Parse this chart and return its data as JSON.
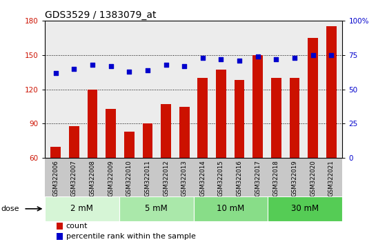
{
  "title": "GDS3529 / 1383079_at",
  "categories": [
    "GSM322006",
    "GSM322007",
    "GSM322008",
    "GSM322009",
    "GSM322010",
    "GSM322011",
    "GSM322012",
    "GSM322013",
    "GSM322014",
    "GSM322015",
    "GSM322016",
    "GSM322017",
    "GSM322018",
    "GSM322019",
    "GSM322020",
    "GSM322021"
  ],
  "bar_values": [
    70,
    88,
    120,
    103,
    83,
    90,
    107,
    105,
    130,
    137,
    128,
    150,
    130,
    130,
    165,
    175
  ],
  "percentile_values": [
    62,
    65,
    68,
    67,
    63,
    64,
    68,
    67,
    73,
    72,
    71,
    74,
    72,
    73,
    75,
    75
  ],
  "bar_color": "#cc1100",
  "percentile_color": "#0000cc",
  "ylim_left": [
    60,
    180
  ],
  "ylim_right": [
    0,
    100
  ],
  "yticks_left": [
    60,
    90,
    120,
    150,
    180
  ],
  "yticks_right": [
    0,
    25,
    50,
    75,
    100
  ],
  "dose_groups": [
    {
      "label": "2 mM",
      "start": 0,
      "end": 3,
      "color": "#d6f5d6"
    },
    {
      "label": "5 mM",
      "start": 4,
      "end": 7,
      "color": "#aae8aa"
    },
    {
      "label": "10 mM",
      "start": 8,
      "end": 11,
      "color": "#88dd88"
    },
    {
      "label": "30 mM",
      "start": 12,
      "end": 15,
      "color": "#55cc55"
    }
  ],
  "legend_items": [
    {
      "label": "count",
      "color": "#cc1100"
    },
    {
      "label": "percentile rank within the sample",
      "color": "#0000cc"
    }
  ],
  "dose_label": "dose",
  "background_color": "#ffffff",
  "xlabel_bg_color": "#c8c8c8",
  "title_fontsize": 10,
  "tick_fontsize": 7.5,
  "legend_fontsize": 8,
  "dose_fontsize": 8.5
}
